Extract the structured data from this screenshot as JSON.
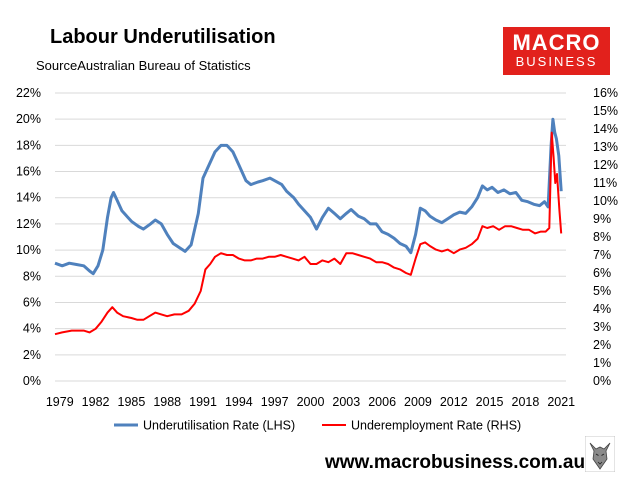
{
  "header": {
    "title": "Labour Underutilisation",
    "subtitle": "SourceAustralian Bureau of Statistics"
  },
  "logo": {
    "line1": "MACRO",
    "line2": "BUSINESS",
    "color": "#e2211c"
  },
  "footer": {
    "site": "www.macrobusiness.com.au"
  },
  "chart_data": {
    "type": "line",
    "grid": true,
    "legend_position": "bottom",
    "x_range": [
      1978.6,
      2021.4
    ],
    "x_ticks": [
      "1979",
      "1982",
      "1985",
      "1988",
      "1991",
      "1994",
      "1997",
      "2000",
      "2003",
      "2006",
      "2009",
      "2012",
      "2015",
      "2018",
      "2021"
    ],
    "y_left": {
      "range": [
        0,
        22
      ],
      "ticks": [
        "0%",
        "2%",
        "4%",
        "6%",
        "8%",
        "10%",
        "12%",
        "14%",
        "16%",
        "18%",
        "20%",
        "22%"
      ]
    },
    "y_right": {
      "range": [
        0,
        16
      ],
      "ticks": [
        "0%",
        "1%",
        "2%",
        "3%",
        "4%",
        "5%",
        "6%",
        "7%",
        "8%",
        "9%",
        "10%",
        "11%",
        "12%",
        "13%",
        "14%",
        "15%",
        "16%"
      ]
    },
    "series": [
      {
        "name": "Underutilisation Rate (LHS)",
        "axis": "left",
        "color": "#4f81bd",
        "points": [
          [
            1978.6,
            9.0
          ],
          [
            1979.2,
            8.8
          ],
          [
            1979.8,
            9.0
          ],
          [
            1980.4,
            8.9
          ],
          [
            1981.0,
            8.8
          ],
          [
            1981.5,
            8.4
          ],
          [
            1981.8,
            8.2
          ],
          [
            1982.2,
            8.8
          ],
          [
            1982.6,
            10.0
          ],
          [
            1983.0,
            12.5
          ],
          [
            1983.3,
            14.0
          ],
          [
            1983.5,
            14.4
          ],
          [
            1983.8,
            13.8
          ],
          [
            1984.2,
            13.0
          ],
          [
            1985.0,
            12.2
          ],
          [
            1985.6,
            11.8
          ],
          [
            1986.0,
            11.6
          ],
          [
            1986.6,
            12.0
          ],
          [
            1987.0,
            12.3
          ],
          [
            1987.5,
            12.0
          ],
          [
            1988.0,
            11.2
          ],
          [
            1988.5,
            10.5
          ],
          [
            1989.0,
            10.2
          ],
          [
            1989.5,
            9.9
          ],
          [
            1990.0,
            10.4
          ],
          [
            1990.6,
            12.8
          ],
          [
            1991.0,
            15.5
          ],
          [
            1991.5,
            16.5
          ],
          [
            1992.0,
            17.5
          ],
          [
            1992.5,
            18.0
          ],
          [
            1993.0,
            18.0
          ],
          [
            1993.5,
            17.5
          ],
          [
            1994.0,
            16.5
          ],
          [
            1994.6,
            15.3
          ],
          [
            1995.0,
            15.0
          ],
          [
            1995.6,
            15.2
          ],
          [
            1996.0,
            15.3
          ],
          [
            1996.6,
            15.5
          ],
          [
            1997.0,
            15.3
          ],
          [
            1997.6,
            15.0
          ],
          [
            1998.0,
            14.5
          ],
          [
            1998.6,
            14.0
          ],
          [
            1999.0,
            13.5
          ],
          [
            1999.5,
            13.0
          ],
          [
            2000.0,
            12.5
          ],
          [
            2000.5,
            11.6
          ],
          [
            2001.0,
            12.5
          ],
          [
            2001.5,
            13.2
          ],
          [
            2002.0,
            12.8
          ],
          [
            2002.5,
            12.4
          ],
          [
            2003.0,
            12.8
          ],
          [
            2003.4,
            13.1
          ],
          [
            2004.0,
            12.6
          ],
          [
            2004.5,
            12.4
          ],
          [
            2005.0,
            12.0
          ],
          [
            2005.5,
            12.0
          ],
          [
            2006.0,
            11.4
          ],
          [
            2006.5,
            11.2
          ],
          [
            2007.0,
            10.9
          ],
          [
            2007.5,
            10.5
          ],
          [
            2008.0,
            10.3
          ],
          [
            2008.4,
            9.8
          ],
          [
            2008.8,
            11.2
          ],
          [
            2009.2,
            13.2
          ],
          [
            2009.6,
            13.0
          ],
          [
            2010.0,
            12.6
          ],
          [
            2010.5,
            12.3
          ],
          [
            2011.0,
            12.1
          ],
          [
            2011.5,
            12.4
          ],
          [
            2012.0,
            12.7
          ],
          [
            2012.5,
            12.9
          ],
          [
            2013.0,
            12.8
          ],
          [
            2013.5,
            13.3
          ],
          [
            2014.0,
            14.0
          ],
          [
            2014.4,
            14.9
          ],
          [
            2014.8,
            14.6
          ],
          [
            2015.2,
            14.8
          ],
          [
            2015.7,
            14.4
          ],
          [
            2016.2,
            14.6
          ],
          [
            2016.7,
            14.3
          ],
          [
            2017.2,
            14.4
          ],
          [
            2017.7,
            13.8
          ],
          [
            2018.2,
            13.7
          ],
          [
            2018.7,
            13.5
          ],
          [
            2019.2,
            13.4
          ],
          [
            2019.6,
            13.7
          ],
          [
            2019.9,
            13.3
          ],
          [
            2020.15,
            18.0
          ],
          [
            2020.3,
            20.0
          ],
          [
            2020.45,
            19.0
          ],
          [
            2020.6,
            18.5
          ],
          [
            2020.8,
            17.2
          ],
          [
            2021.0,
            14.5
          ]
        ]
      },
      {
        "name": "Underemployment Rate (RHS)",
        "axis": "right",
        "color": "#ff0000",
        "points": [
          [
            1978.6,
            2.6
          ],
          [
            1979.2,
            2.7
          ],
          [
            1980.0,
            2.8
          ],
          [
            1981.0,
            2.8
          ],
          [
            1981.5,
            2.7
          ],
          [
            1982.0,
            2.9
          ],
          [
            1982.5,
            3.3
          ],
          [
            1983.0,
            3.8
          ],
          [
            1983.4,
            4.1
          ],
          [
            1983.8,
            3.8
          ],
          [
            1984.3,
            3.6
          ],
          [
            1985.0,
            3.5
          ],
          [
            1985.5,
            3.4
          ],
          [
            1986.0,
            3.4
          ],
          [
            1986.5,
            3.6
          ],
          [
            1987.0,
            3.8
          ],
          [
            1987.5,
            3.7
          ],
          [
            1988.0,
            3.6
          ],
          [
            1988.6,
            3.7
          ],
          [
            1989.2,
            3.7
          ],
          [
            1989.8,
            3.9
          ],
          [
            1990.3,
            4.3
          ],
          [
            1990.8,
            5.0
          ],
          [
            1991.2,
            6.2
          ],
          [
            1991.6,
            6.5
          ],
          [
            1992.0,
            6.9
          ],
          [
            1992.5,
            7.1
          ],
          [
            1993.0,
            7.0
          ],
          [
            1993.5,
            7.0
          ],
          [
            1994.0,
            6.8
          ],
          [
            1994.5,
            6.7
          ],
          [
            1995.0,
            6.7
          ],
          [
            1995.5,
            6.8
          ],
          [
            1996.0,
            6.8
          ],
          [
            1996.5,
            6.9
          ],
          [
            1997.0,
            6.9
          ],
          [
            1997.5,
            7.0
          ],
          [
            1998.0,
            6.9
          ],
          [
            1998.5,
            6.8
          ],
          [
            1999.0,
            6.7
          ],
          [
            1999.5,
            6.9
          ],
          [
            2000.0,
            6.5
          ],
          [
            2000.5,
            6.5
          ],
          [
            2001.0,
            6.7
          ],
          [
            2001.5,
            6.6
          ],
          [
            2002.0,
            6.8
          ],
          [
            2002.5,
            6.5
          ],
          [
            2003.0,
            7.1
          ],
          [
            2003.5,
            7.1
          ],
          [
            2004.0,
            7.0
          ],
          [
            2004.5,
            6.9
          ],
          [
            2005.0,
            6.8
          ],
          [
            2005.5,
            6.6
          ],
          [
            2006.0,
            6.6
          ],
          [
            2006.5,
            6.5
          ],
          [
            2007.0,
            6.3
          ],
          [
            2007.5,
            6.2
          ],
          [
            2008.0,
            6.0
          ],
          [
            2008.4,
            5.9
          ],
          [
            2008.8,
            6.8
          ],
          [
            2009.2,
            7.6
          ],
          [
            2009.6,
            7.7
          ],
          [
            2010.0,
            7.5
          ],
          [
            2010.5,
            7.3
          ],
          [
            2011.0,
            7.2
          ],
          [
            2011.5,
            7.3
          ],
          [
            2012.0,
            7.1
          ],
          [
            2012.5,
            7.3
          ],
          [
            2013.0,
            7.4
          ],
          [
            2013.5,
            7.6
          ],
          [
            2014.0,
            7.9
          ],
          [
            2014.4,
            8.6
          ],
          [
            2014.8,
            8.5
          ],
          [
            2015.3,
            8.6
          ],
          [
            2015.8,
            8.4
          ],
          [
            2016.3,
            8.6
          ],
          [
            2016.8,
            8.6
          ],
          [
            2017.3,
            8.5
          ],
          [
            2017.8,
            8.4
          ],
          [
            2018.3,
            8.4
          ],
          [
            2018.8,
            8.2
          ],
          [
            2019.3,
            8.3
          ],
          [
            2019.7,
            8.3
          ],
          [
            2020.0,
            8.5
          ],
          [
            2020.2,
            13.8
          ],
          [
            2020.35,
            12.5
          ],
          [
            2020.5,
            11.0
          ],
          [
            2020.65,
            11.5
          ],
          [
            2020.85,
            9.5
          ],
          [
            2021.0,
            8.2
          ]
        ]
      }
    ]
  }
}
